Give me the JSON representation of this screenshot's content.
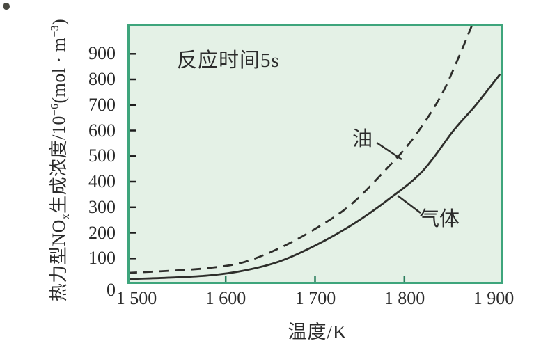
{
  "colors": {
    "plot_background": "#e4f1e6",
    "frame": "#3ea57c",
    "curve": "#2e2e2b",
    "text": "#2b2b2b",
    "bottom_tick": "#2a7d5d",
    "left_tick": "#1d1d1d"
  },
  "chart_data": {
    "type": "line",
    "title": "",
    "annotation": "反应时间5s",
    "xlabel": "温度/K",
    "ylabel": "热力型NOx生成浓度/10−6(mol·m−3)",
    "ylabel_parts": {
      "p1": "热力型NO",
      "sub1": "x",
      "p2": "生成浓度/10",
      "sup1": "−6",
      "p3": "(mol · m",
      "sup2": "−3",
      "p4": ")"
    },
    "xlim": [
      1490,
      1910
    ],
    "ylim": [
      0,
      1015
    ],
    "grid": false,
    "legend_position": "inline-curve-labels",
    "x_ticks": [
      {
        "value": 1500,
        "label": "1 500",
        "mark": false
      },
      {
        "value": 1600,
        "label": "1 600",
        "mark": true
      },
      {
        "value": 1700,
        "label": "1 700",
        "mark": true
      },
      {
        "value": 1800,
        "label": "1 800",
        "mark": true
      },
      {
        "value": 1900,
        "label": "1 900",
        "mark": false
      }
    ],
    "y_ticks": [
      {
        "value": 0,
        "label": "0",
        "mark": false,
        "dy": 9
      },
      {
        "value": 100,
        "label": "100",
        "mark": true
      },
      {
        "value": 200,
        "label": "200",
        "mark": true
      },
      {
        "value": 300,
        "label": "300",
        "mark": true
      },
      {
        "value": 400,
        "label": "400",
        "mark": true
      },
      {
        "value": 500,
        "label": "500",
        "mark": true
      },
      {
        "value": 600,
        "label": "600",
        "mark": true
      },
      {
        "value": 700,
        "label": "700",
        "mark": true
      },
      {
        "value": 800,
        "label": "800",
        "mark": true
      },
      {
        "value": 900,
        "label": "900",
        "mark": true
      }
    ],
    "series": [
      {
        "name": "油",
        "line_style": "dashed",
        "points": [
          [
            1490,
            43
          ],
          [
            1500,
            45
          ],
          [
            1540,
            52
          ],
          [
            1580,
            62
          ],
          [
            1620,
            85
          ],
          [
            1660,
            140
          ],
          [
            1700,
            215
          ],
          [
            1740,
            310
          ],
          [
            1780,
            450
          ],
          [
            1810,
            570
          ],
          [
            1840,
            730
          ],
          [
            1860,
            880
          ],
          [
            1876,
            1015
          ]
        ]
      },
      {
        "name": "气体",
        "line_style": "solid",
        "points": [
          [
            1490,
            19
          ],
          [
            1500,
            20
          ],
          [
            1540,
            25
          ],
          [
            1580,
            33
          ],
          [
            1620,
            52
          ],
          [
            1660,
            88
          ],
          [
            1700,
            150
          ],
          [
            1740,
            228
          ],
          [
            1780,
            325
          ],
          [
            1820,
            440
          ],
          [
            1855,
            600
          ],
          [
            1880,
            700
          ],
          [
            1907,
            820
          ]
        ]
      }
    ]
  }
}
